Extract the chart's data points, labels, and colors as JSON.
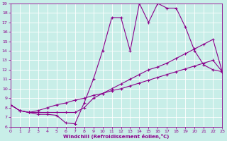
{
  "xlabel": "Windchill (Refroidissement éolien,°C)",
  "background_color": "#c8eee8",
  "line_color": "#8b008b",
  "grid_color": "#ffffff",
  "xmin": 0,
  "xmax": 23,
  "ymin": 6,
  "ymax": 19,
  "hours": [
    0,
    1,
    2,
    3,
    4,
    5,
    6,
    7,
    8,
    9,
    10,
    11,
    12,
    13,
    14,
    15,
    16,
    17,
    18,
    19,
    20,
    21,
    22,
    23
  ],
  "line1": [
    8.3,
    7.7,
    7.5,
    7.3,
    7.3,
    7.2,
    6.4,
    6.3,
    8.5,
    11.0,
    14.0,
    17.5,
    17.5,
    14.0,
    19.0,
    17.0,
    19.0,
    18.5,
    18.5,
    16.5,
    14.0,
    12.5,
    12.0,
    11.8
  ],
  "line2": [
    8.3,
    7.7,
    7.5,
    7.5,
    7.5,
    7.5,
    7.5,
    7.5,
    8.0,
    9.0,
    9.5,
    10.0,
    10.5,
    11.0,
    11.5,
    12.0,
    12.3,
    12.7,
    13.2,
    13.7,
    14.2,
    14.7,
    15.2,
    11.8
  ],
  "line3": [
    8.3,
    7.7,
    7.5,
    7.7,
    8.0,
    8.3,
    8.5,
    8.8,
    9.0,
    9.3,
    9.5,
    9.8,
    10.0,
    10.3,
    10.6,
    10.9,
    11.2,
    11.5,
    11.8,
    12.1,
    12.4,
    12.7,
    13.0,
    11.8
  ]
}
